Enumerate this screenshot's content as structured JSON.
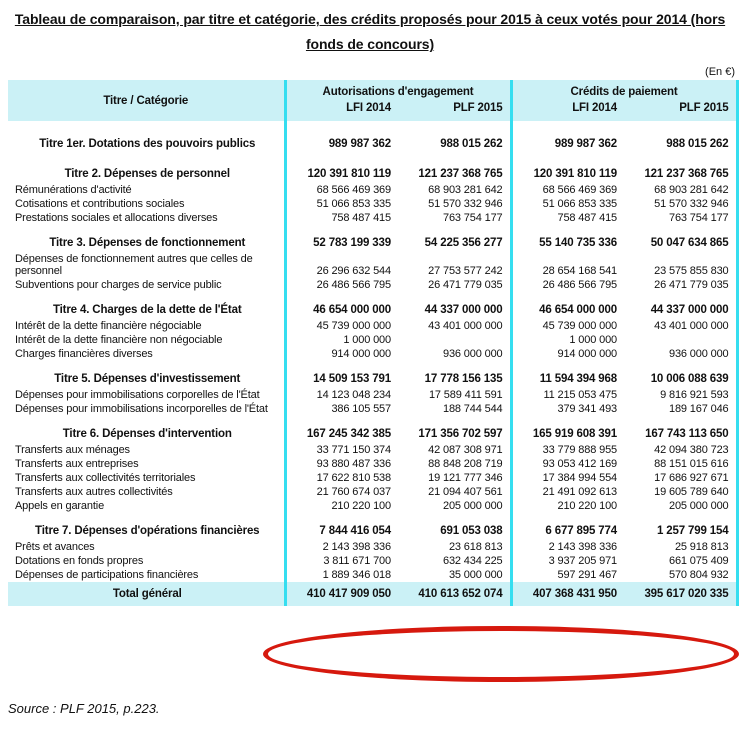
{
  "title": "Tableau de comparaison, par titre et catégorie, des crédits proposés pour 2015 à ceux votés pour 2014 (hors fonds de concours)",
  "unit_note": "(En €)",
  "source": "Source : PLF 2015, p.223.",
  "colors": {
    "header_background": "#cbf1f6",
    "divider_cyan": "#35def0",
    "annotation_red": "#d6190e",
    "text": "#111111"
  },
  "table": {
    "row_header": "Titre / Catégorie",
    "group_headers": [
      "Autorisations d'engagement",
      "Crédits de paiement"
    ],
    "sub_headers": [
      "LFI 2014",
      "PLF 2015",
      "LFI 2014",
      "PLF 2015"
    ],
    "rows": [
      {
        "type": "title",
        "label": "Titre 1er. Dotations des pouvoirs publics",
        "values": [
          "989 987 362",
          "988 015 262",
          "989 987 362",
          "988 015 262"
        ]
      },
      {
        "type": "title",
        "label": "Titre 2. Dépenses de personnel",
        "values": [
          "120 391 810 119",
          "121 237 368 765",
          "120 391 810 119",
          "121 237 368 765"
        ]
      },
      {
        "type": "category",
        "label": "Rémunérations d'activité",
        "values": [
          "68 566 469 369",
          "68 903 281 642",
          "68 566 469 369",
          "68 903 281 642"
        ]
      },
      {
        "type": "category",
        "label": "Cotisations et contributions sociales",
        "values": [
          "51 066 853 335",
          "51 570 332 946",
          "51 066 853 335",
          "51 570 332 946"
        ]
      },
      {
        "type": "category",
        "label": "Prestations sociales et allocations diverses",
        "values": [
          "758 487 415",
          "763 754 177",
          "758 487 415",
          "763 754 177"
        ]
      },
      {
        "type": "title",
        "label": "Titre 3. Dépenses de fonctionnement",
        "values": [
          "52 783 199 339",
          "54 225 356 277",
          "55 140 735 336",
          "50 047 634 865"
        ]
      },
      {
        "type": "category",
        "label": "Dépenses de fonctionnement autres que celles de personnel",
        "values": [
          "26 296 632 544",
          "27 753 577 242",
          "28 654 168 541",
          "23 575 855 830"
        ]
      },
      {
        "type": "category",
        "label": "Subventions pour charges de service public",
        "values": [
          "26 486 566 795",
          "26 471 779 035",
          "26 486 566 795",
          "26 471 779 035"
        ]
      },
      {
        "type": "title",
        "label": "Titre 4. Charges de la dette de l'État",
        "values": [
          "46 654 000 000",
          "44 337 000 000",
          "46 654 000 000",
          "44 337 000 000"
        ]
      },
      {
        "type": "category",
        "label": "Intérêt de la dette financière négociable",
        "values": [
          "45 739 000 000",
          "43 401 000 000",
          "45 739 000 000",
          "43 401 000 000"
        ]
      },
      {
        "type": "category",
        "label": "Intérêt de la dette financière non négociable",
        "values": [
          "1 000 000",
          "",
          "1 000 000",
          ""
        ]
      },
      {
        "type": "category",
        "label": "Charges financières diverses",
        "values": [
          "914 000 000",
          "936 000 000",
          "914 000 000",
          "936 000 000"
        ]
      },
      {
        "type": "title",
        "label": "Titre 5. Dépenses d'investissement",
        "values": [
          "14 509 153 791",
          "17 778 156 135",
          "11 594 394 968",
          "10 006 088 639"
        ]
      },
      {
        "type": "category",
        "label": "Dépenses pour immobilisations corporelles de l'État",
        "values": [
          "14 123 048 234",
          "17 589 411 591",
          "11 215 053 475",
          "9 816 921 593"
        ]
      },
      {
        "type": "category",
        "label": "Dépenses pour immobilisations incorporelles de l'État",
        "values": [
          "386 105 557",
          "188 744 544",
          "379 341 493",
          "189 167 046"
        ]
      },
      {
        "type": "title",
        "label": "Titre 6. Dépenses d'intervention",
        "values": [
          "167 245 342 385",
          "171 356 702 597",
          "165 919 608 391",
          "167 743 113 650"
        ]
      },
      {
        "type": "category",
        "label": "Transferts aux ménages",
        "values": [
          "33 771 150 374",
          "42 087 308 971",
          "33 779 888 955",
          "42 094 380 723"
        ]
      },
      {
        "type": "category",
        "label": "Transferts aux entreprises",
        "values": [
          "93 880 487 336",
          "88 848 208 719",
          "93 053 412 169",
          "88 151 015 616"
        ]
      },
      {
        "type": "category",
        "label": "Transferts aux collectivités territoriales",
        "values": [
          "17 622 810 538",
          "19 121 777 346",
          "17 384 994 554",
          "17 686 927 671"
        ]
      },
      {
        "type": "category",
        "label": "Transferts aux autres collectivités",
        "values": [
          "21 760 674 037",
          "21 094 407 561",
          "21 491 092 613",
          "19 605 789 640"
        ]
      },
      {
        "type": "category",
        "label": "Appels en garantie",
        "values": [
          "210 220 100",
          "205 000 000",
          "210 220 100",
          "205 000 000"
        ]
      },
      {
        "type": "title",
        "label": "Titre 7. Dépenses d'opérations financières",
        "values": [
          "7 844 416 054",
          "691 053 038",
          "6 677 895 774",
          "1 257 799 154"
        ]
      },
      {
        "type": "category",
        "label": "Prêts et avances",
        "values": [
          "2 143 398 336",
          "23 618 813",
          "2 143 398 336",
          "25 918 813"
        ]
      },
      {
        "type": "category",
        "label": "Dotations en fonds propres",
        "values": [
          "3 811 671 700",
          "632 434 225",
          "3 937 205 971",
          "661 075 409"
        ]
      },
      {
        "type": "category",
        "label": "Dépenses de participations financières",
        "values": [
          "1 889 346 018",
          "35 000 000",
          "597 291 467",
          "570 804 932"
        ]
      },
      {
        "type": "total",
        "label": "Total général",
        "values": [
          "410 417 909 050",
          "410 613 652 074",
          "407 368 431 950",
          "395 617 020 335"
        ]
      }
    ]
  }
}
